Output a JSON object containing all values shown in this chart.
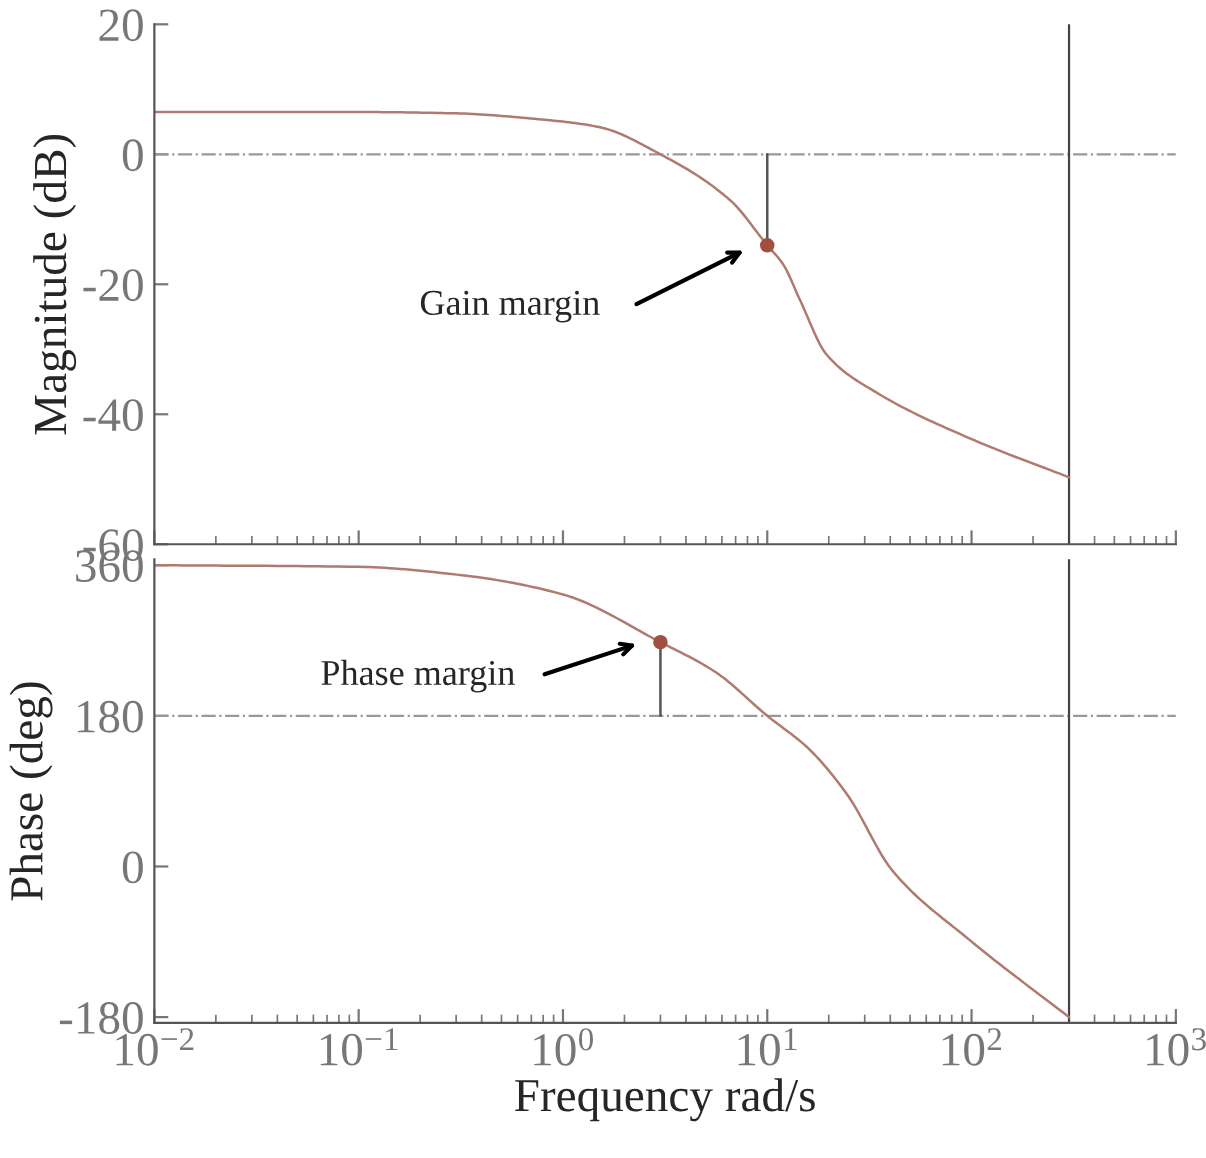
{
  "chart_data": [
    {
      "type": "line",
      "ylabel": "Magnitude (dB)",
      "log": "x",
      "xlim": [
        0.01,
        1000
      ],
      "ylim": [
        -60,
        20
      ],
      "yticks": [
        -60,
        -40,
        -20,
        0,
        20
      ],
      "tick_labels": "y",
      "grid": false,
      "legend": false,
      "xticks": [
        {
          "value": 0.01,
          "label": null
        },
        {
          "value": 0.1,
          "label": null
        },
        {
          "value": 1,
          "label": null
        },
        {
          "value": 10,
          "label": null
        },
        {
          "value": 100,
          "label": null
        },
        {
          "value": 1000,
          "label": null
        }
      ],
      "series": [
        {
          "color": "#b07a70",
          "x": [
            0.01,
            0.1,
            0.3,
            0.76,
            1.5,
            3.0,
            6.6,
            10,
            12,
            14.5,
            19.5,
            34,
            98,
            300
          ],
          "values": [
            6.5,
            6.5,
            6.3,
            5.4,
            4.2,
            0,
            -7.1,
            -14,
            -17,
            -22.5,
            -30.8,
            -36.6,
            -43.7,
            -49.7
          ]
        },
        {
          "color": "#555555",
          "x": [
            10,
            10
          ],
          "values": [
            0,
            -14
          ]
        },
        {
          "type": "scatter",
          "color": "#a05040",
          "marker": "circle",
          "x": [
            10
          ],
          "values": [
            -14
          ]
        }
      ],
      "ref_lines": [
        {
          "axis": "y",
          "value": 0,
          "label": null,
          "color": "#999999",
          "line_style": "dashdot"
        },
        {
          "axis": "x",
          "value": 300,
          "label": null,
          "color": "#444444",
          "line_style": "solid"
        }
      ],
      "annotations": [
        "Gain margin"
      ]
    },
    {
      "type": "line",
      "ylabel": "Phase (deg)",
      "xlabel": "Frequency rad/s",
      "log": "x",
      "xlim": [
        0.01,
        1000
      ],
      "ylim": [
        -187,
        367
      ],
      "yticks": [
        -180,
        0,
        180,
        360
      ],
      "grid": false,
      "legend": false,
      "xticks": [
        {
          "value": 0.01,
          "label": "10$^{−2}$"
        },
        {
          "value": 0.1,
          "label": "10$^{−1}$"
        },
        {
          "value": 1,
          "label": "10$^{0}$"
        },
        {
          "value": 10,
          "label": "10$^{1}$"
        },
        {
          "value": 100,
          "label": "10$^{2}$"
        },
        {
          "value": 1000,
          "label": "10$^{3}$"
        }
      ],
      "series": [
        {
          "color": "#b07a70",
          "x": [
            0.01,
            0.1,
            0.32,
            1,
            3.0,
            5.6,
            10,
            15.9,
            24.6,
            41,
            98,
            300
          ],
          "values": [
            360,
            358,
            348,
            325,
            268,
            232,
            180,
            141,
            86,
            -5,
            -88,
            -180
          ]
        },
        {
          "color": "#555555",
          "x": [
            3,
            3
          ],
          "values": [
            180,
            268
          ]
        },
        {
          "type": "scatter",
          "color": "#a05040",
          "marker": "circle",
          "x": [
            3
          ],
          "values": [
            268
          ]
        }
      ],
      "ref_lines": [
        {
          "axis": "y",
          "value": 180,
          "label": null,
          "color": "#999999",
          "line_style": "dashdot"
        },
        {
          "axis": "x",
          "value": 300,
          "label": null,
          "color": "#444444",
          "line_style": "solid"
        }
      ],
      "annotations": [
        "Phase margin"
      ]
    }
  ]
}
